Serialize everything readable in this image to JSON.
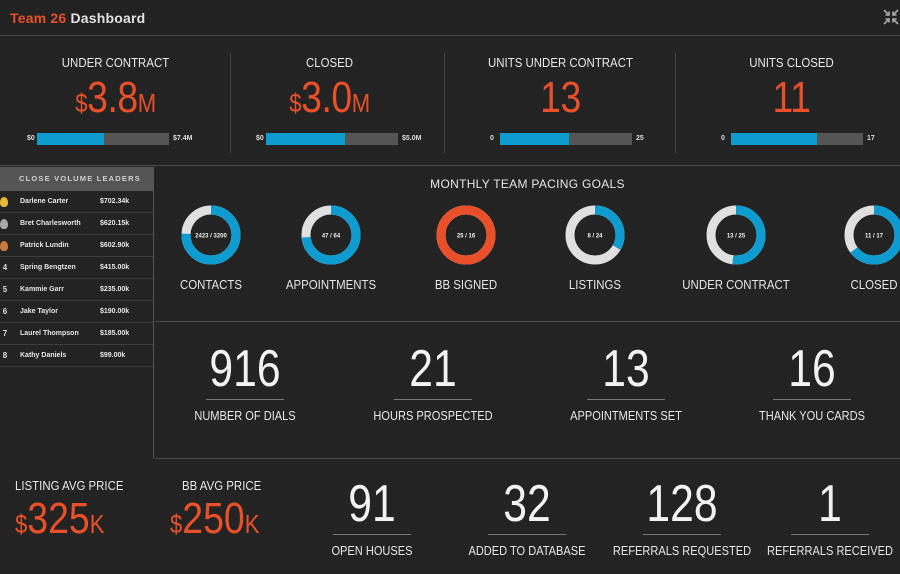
{
  "header": {
    "team": "Team 26",
    "title": "Dashboard",
    "collapse_icon": "collapse-arrows-icon"
  },
  "kpis": [
    {
      "label": "UNDER CONTRACT",
      "prefix": "$",
      "value": "3.8",
      "suffix": "M",
      "bar_min": "$0",
      "bar_max": "$7.4M",
      "progress": 0.51
    },
    {
      "label": "CLOSED",
      "prefix": "$",
      "value": "3.0",
      "suffix": "M",
      "bar_min": "$0",
      "bar_max": "$5.0M",
      "progress": 0.6
    },
    {
      "label": "UNITS UNDER CONTRACT",
      "prefix": "",
      "value": "13",
      "suffix": "",
      "bar_min": "0",
      "bar_max": "25",
      "progress": 0.52
    },
    {
      "label": "UNITS CLOSED",
      "prefix": "",
      "value": "11",
      "suffix": "",
      "bar_min": "0",
      "bar_max": "17",
      "progress": 0.65
    }
  ],
  "leaders": {
    "title": "CLOSE VOLUME LEADERS",
    "rows": [
      {
        "rank": "1",
        "medal": "gold",
        "name": "Darlene Carter",
        "amount": "$702.34k"
      },
      {
        "rank": "2",
        "medal": "silver",
        "name": "Bret Charlesworth",
        "amount": "$620.15k"
      },
      {
        "rank": "3",
        "medal": "bronze",
        "name": "Patrick Lundin",
        "amount": "$602.90k"
      },
      {
        "rank": "4",
        "medal": "",
        "name": "Spring Bengtzen",
        "amount": "$415.00k"
      },
      {
        "rank": "5",
        "medal": "",
        "name": "Kammie Garr",
        "amount": "$235.00k"
      },
      {
        "rank": "6",
        "medal": "",
        "name": "Jake Taylor",
        "amount": "$190.00k"
      },
      {
        "rank": "7",
        "medal": "",
        "name": "Laurel Thompson",
        "amount": "$185.00k"
      },
      {
        "rank": "8",
        "medal": "",
        "name": "Kathy Daniels",
        "amount": "$99.00k"
      }
    ]
  },
  "pacing": {
    "title": "MONTHLY TEAM PACING GOALS",
    "gauges": [
      {
        "label": "CONTACTS",
        "text": "2423 / 3200",
        "current": 2423,
        "goal": 3200,
        "color": "#0e9bcf"
      },
      {
        "label": "APPOINTMENTS",
        "text": "47 / 64",
        "current": 47,
        "goal": 64,
        "color": "#0e9bcf"
      },
      {
        "label": "BB SIGNED",
        "text": "25 / 16",
        "current": 25,
        "goal": 16,
        "color": "#e9502a"
      },
      {
        "label": "LISTINGS",
        "text": "8 / 24",
        "current": 8,
        "goal": 24,
        "color": "#0e9bcf"
      },
      {
        "label": "UNDER CONTRACT",
        "text": "13 / 25",
        "current": 13,
        "goal": 25,
        "color": "#0e9bcf"
      },
      {
        "label": "CLOSED",
        "text": "11 / 17",
        "current": 11,
        "goal": 17,
        "color": "#0e9bcf"
      }
    ]
  },
  "activity": [
    {
      "value": "916",
      "label": "NUMBER OF DIALS"
    },
    {
      "value": "21",
      "label": "HOURS PROSPECTED"
    },
    {
      "value": "13",
      "label": "APPOINTMENTS SET"
    },
    {
      "value": "16",
      "label": "THANK YOU CARDS"
    }
  ],
  "prices": [
    {
      "label": "LISTING AVG PRICE",
      "prefix": "$",
      "value": "325",
      "suffix": "K"
    },
    {
      "label": "BB AVG PRICE",
      "prefix": "$",
      "value": "250",
      "suffix": "K"
    }
  ],
  "bottom_stats": [
    {
      "value": "91",
      "label": "OPEN HOUSES"
    },
    {
      "value": "32",
      "label": "ADDED TO DATABASE"
    },
    {
      "value": "128",
      "label": "REFERRALS REQUESTED"
    },
    {
      "value": "1",
      "label": "REFERRALS RECEIVED"
    }
  ],
  "colors": {
    "accent": "#e9502a",
    "progress": "#0e9bcf",
    "track": "#555555",
    "gauge_track": "#e0e0e0",
    "background": "#232323"
  }
}
